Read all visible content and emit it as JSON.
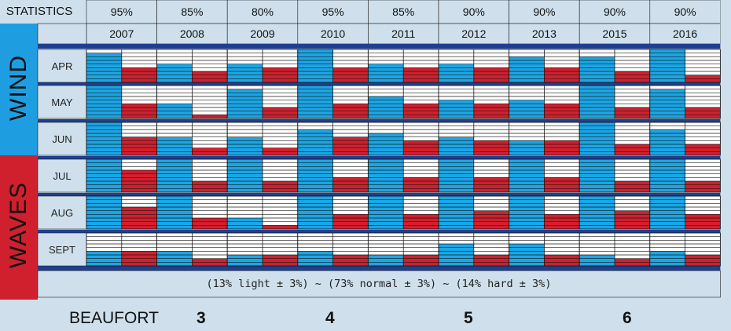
{
  "header": {
    "statistics_label": "STATISTICS"
  },
  "side_labels": {
    "wind": "WIND",
    "waves": "WAVES"
  },
  "legend_text": "(13% light ± 3%) ~ (73% normal ± 3%) ~ (14% hard ± 3%)",
  "beaufort": {
    "label": "BEAUFORT",
    "values": [
      "3",
      "4",
      "5",
      "6"
    ]
  },
  "colors": {
    "wind_side": "#1e9ee0",
    "waves_side": "#d0202e",
    "bar_blue": "#1aa6e6",
    "bar_red": "#d21f2d",
    "separator": "#1f3f8f",
    "background": "#cfe0ec"
  },
  "chart_data": {
    "type": "bar",
    "years": [
      "2007",
      "2008",
      "2009",
      "2010",
      "2011",
      "2012",
      "2013",
      "2015",
      "2016"
    ],
    "statistics": [
      "95%",
      "85%",
      "80%",
      "95%",
      "85%",
      "90%",
      "90%",
      "90%",
      "90%"
    ],
    "months": [
      "APR",
      "MAY",
      "JUN",
      "JUL",
      "AUG",
      "SEPT"
    ],
    "groups": [
      {
        "label": "WIND",
        "months": [
          "APR",
          "MAY",
          "JUN"
        ]
      },
      {
        "label": "WAVES",
        "months": [
          "JUL",
          "AUG",
          "SEPT"
        ]
      }
    ],
    "scale_levels": 9,
    "series": [
      {
        "color": "blue",
        "values": [
          [
            8,
            5,
            5,
            9,
            5,
            5,
            7,
            7,
            9
          ],
          [
            9,
            4,
            8,
            9,
            6,
            5,
            5,
            9,
            8
          ],
          [
            9,
            5,
            5,
            7,
            6,
            5,
            4,
            9,
            7
          ],
          [
            9,
            9,
            9,
            9,
            9,
            9,
            9,
            9,
            9
          ],
          [
            9,
            9,
            3,
            9,
            9,
            9,
            9,
            9,
            9
          ],
          [
            4,
            4,
            3,
            4,
            3,
            6,
            6,
            3,
            4
          ]
        ]
      },
      {
        "color": "red",
        "values": [
          [
            4,
            3,
            4,
            4,
            4,
            4,
            4,
            3,
            2
          ],
          [
            4,
            1,
            3,
            4,
            4,
            4,
            4,
            3,
            3
          ],
          [
            5,
            2,
            2,
            5,
            4,
            4,
            4,
            3,
            3
          ],
          [
            6,
            3,
            3,
            4,
            4,
            4,
            4,
            3,
            3
          ],
          [
            6,
            3,
            1,
            4,
            4,
            5,
            4,
            5,
            4
          ],
          [
            4,
            2,
            3,
            3,
            3,
            3,
            3,
            2,
            3
          ]
        ]
      }
    ]
  }
}
